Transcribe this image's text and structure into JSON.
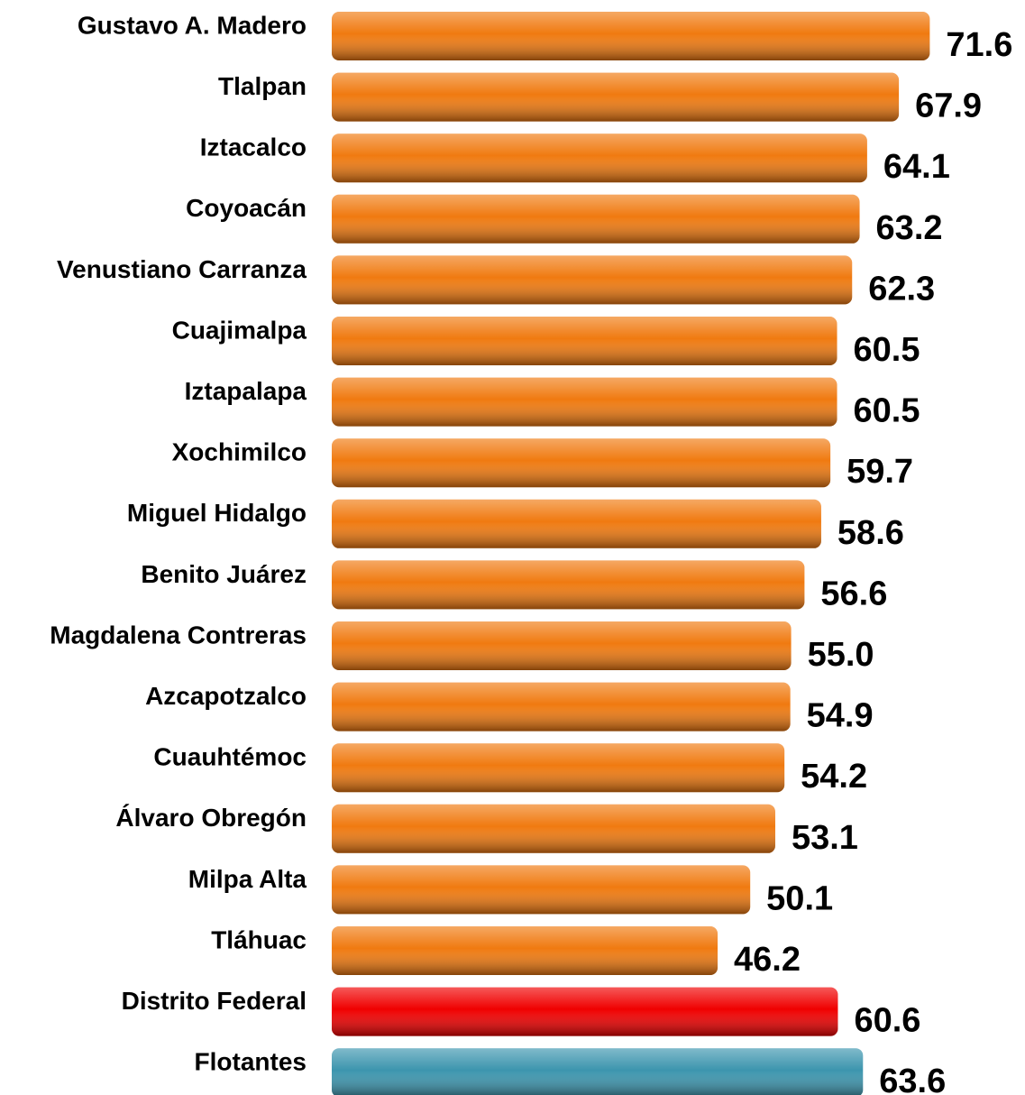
{
  "chart_data": {
    "type": "bar",
    "orientation": "horizontal",
    "categories": [
      "Gustavo A. Madero",
      "Tlalpan",
      "Iztacalco",
      "Coyoacán",
      "Venustiano Carranza",
      "Cuajimalpa",
      "Iztapalapa",
      "Xochimilco",
      "Miguel Hidalgo",
      "Benito Juárez",
      "Magdalena Contreras",
      "Azcapotzalco",
      "Cuauhtémoc",
      "Álvaro Obregón",
      "Milpa Alta",
      "Tláhuac",
      "Distrito Federal",
      "Flotantes"
    ],
    "values": [
      71.6,
      67.9,
      64.1,
      63.2,
      62.3,
      60.5,
      60.5,
      59.7,
      58.6,
      56.6,
      55.0,
      54.9,
      54.2,
      53.1,
      50.1,
      46.2,
      60.6,
      63.6
    ],
    "value_labels": [
      "71.6",
      "67.9",
      "64.1",
      "63.2",
      "62.3",
      "60.5",
      "60.5",
      "59.7",
      "58.6",
      "56.6",
      "55.0",
      "54.9",
      "54.2",
      "53.1",
      "50.1",
      "46.2",
      "60.6",
      "63.6"
    ],
    "colors": [
      "#f07a10",
      "#f07a10",
      "#f07a10",
      "#f07a10",
      "#f07a10",
      "#f07a10",
      "#f07a10",
      "#f07a10",
      "#f07a10",
      "#f07a10",
      "#f07a10",
      "#f07a10",
      "#f07a10",
      "#f07a10",
      "#f07a10",
      "#f07a10",
      "#f00000",
      "#3c95ae"
    ],
    "xlim": [
      0,
      83
    ]
  }
}
